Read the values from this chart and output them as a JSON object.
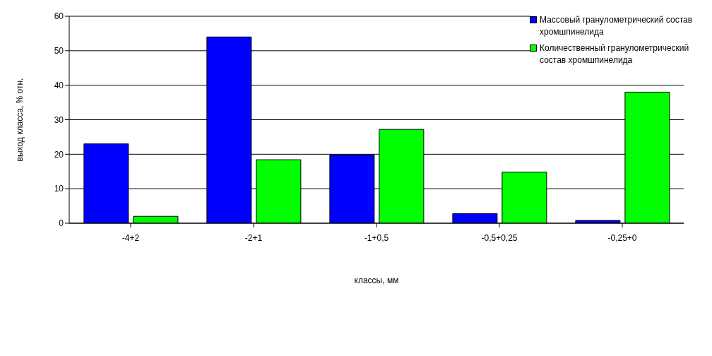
{
  "chart_data": {
    "type": "bar",
    "xlabel": "классы, мм",
    "ylabel": "выход класса, % отн.",
    "categories": [
      "-4+2",
      "-2+1",
      "-1+0,5",
      "-0,5+0,25",
      "-0,25+0"
    ],
    "series": [
      {
        "name": "Массовый гранулометрический состав хромшпинелида",
        "color": "#0000ff",
        "values": [
          23,
          54,
          19.8,
          2.8,
          0.8
        ]
      },
      {
        "name": "Количественный гранулометрический состав хромшпинелида",
        "color": "#00ff00",
        "values": [
          2,
          18.4,
          27.2,
          14.8,
          38
        ]
      }
    ],
    "ylim": [
      0,
      60
    ],
    "yticks": [
      0,
      10,
      20,
      30,
      40,
      50,
      60
    ],
    "grid": "y",
    "legend": "top right"
  }
}
